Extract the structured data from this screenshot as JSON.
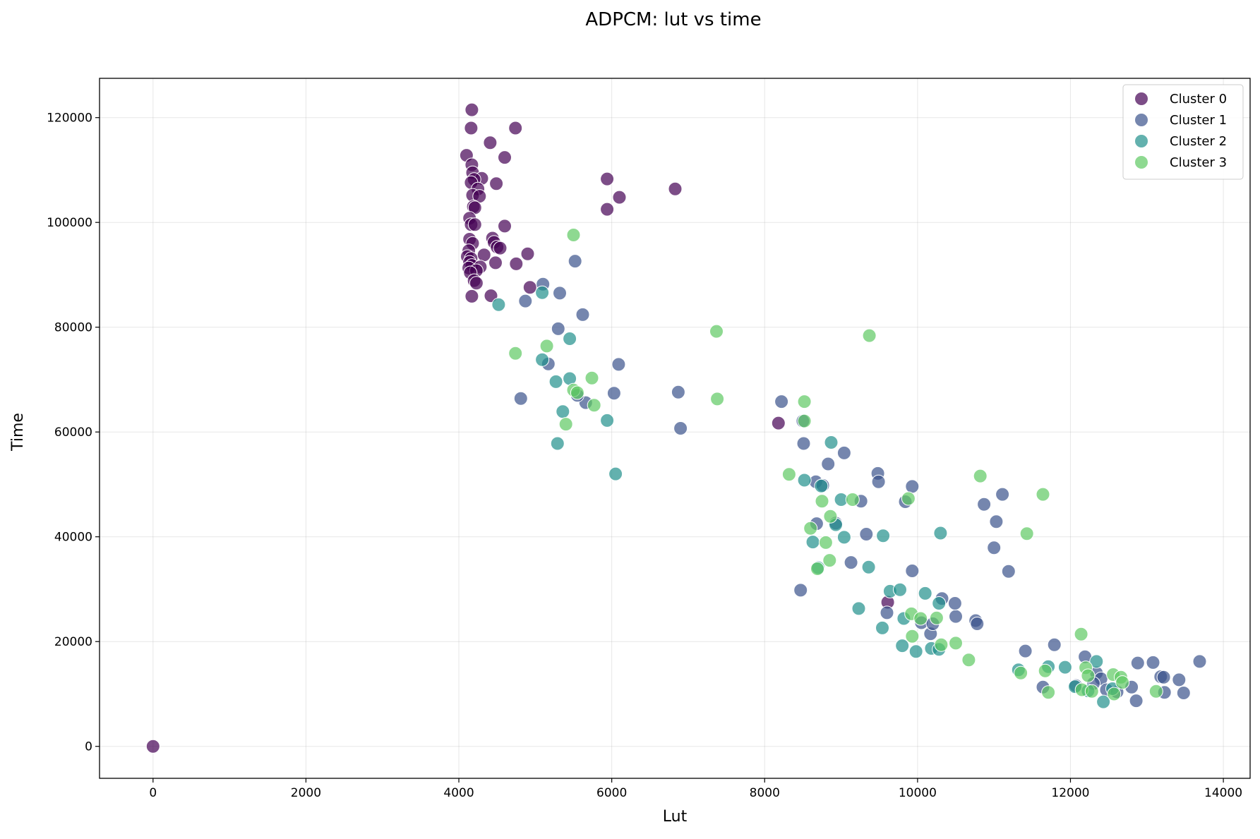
{
  "chart_data": {
    "type": "scatter",
    "title": "ADPCM: lut vs time",
    "xlabel": "Lut",
    "ylabel": "Time",
    "xlim": [
      -700,
      14350
    ],
    "ylim": [
      -6100,
      127500
    ],
    "xticks": [
      0,
      2000,
      4000,
      6000,
      8000,
      10000,
      12000,
      14000
    ],
    "xtick_labels": [
      "0",
      "2000",
      "4000",
      "6000",
      "8000",
      "10000",
      "12000",
      "14000"
    ],
    "yticks": [
      0,
      20000,
      40000,
      60000,
      80000,
      100000,
      120000
    ],
    "ytick_labels": [
      "0",
      "20000",
      "40000",
      "60000",
      "80000",
      "100000",
      "120000"
    ],
    "grid": true,
    "legend_position": "top-right",
    "series": [
      {
        "name": "Cluster 0",
        "color": "#440154",
        "points": [
          [
            0,
            0
          ],
          [
            4170,
            121500
          ],
          [
            4160,
            118000
          ],
          [
            4740,
            118000
          ],
          [
            4410,
            115200
          ],
          [
            4600,
            112400
          ],
          [
            4100,
            112800
          ],
          [
            4170,
            111000
          ],
          [
            4180,
            109500
          ],
          [
            4300,
            108400
          ],
          [
            4200,
            108200
          ],
          [
            4160,
            107600
          ],
          [
            4490,
            107400
          ],
          [
            4250,
            106400
          ],
          [
            4180,
            105200
          ],
          [
            4270,
            105000
          ],
          [
            4190,
            103000
          ],
          [
            4210,
            102800
          ],
          [
            4140,
            100800
          ],
          [
            4160,
            99600
          ],
          [
            4210,
            99600
          ],
          [
            4600,
            99300
          ],
          [
            4440,
            97000
          ],
          [
            4140,
            96800
          ],
          [
            4460,
            96200
          ],
          [
            4180,
            96000
          ],
          [
            4500,
            95300
          ],
          [
            4540,
            95100
          ],
          [
            4130,
            94600
          ],
          [
            4900,
            94000
          ],
          [
            4330,
            93800
          ],
          [
            4110,
            93500
          ],
          [
            4160,
            93100
          ],
          [
            4140,
            92400
          ],
          [
            4480,
            92300
          ],
          [
            4750,
            92100
          ],
          [
            4170,
            91800
          ],
          [
            4280,
            91500
          ],
          [
            4130,
            91300
          ],
          [
            4230,
            90800
          ],
          [
            4150,
            90400
          ],
          [
            4200,
            88900
          ],
          [
            4230,
            88400
          ],
          [
            4930,
            87600
          ],
          [
            4420,
            86000
          ],
          [
            4170,
            85900
          ],
          [
            5940,
            108300
          ],
          [
            6100,
            104800
          ],
          [
            5940,
            102500
          ],
          [
            6830,
            106400
          ],
          [
            8180,
            61700
          ],
          [
            9610,
            27500
          ]
        ]
      },
      {
        "name": "Cluster 1",
        "color": "#3b528b",
        "points": [
          [
            5100,
            88200
          ],
          [
            5320,
            86500
          ],
          [
            4870,
            85000
          ],
          [
            5520,
            92600
          ],
          [
            5620,
            82400
          ],
          [
            5300,
            79700
          ],
          [
            5170,
            73000
          ],
          [
            6090,
            72900
          ],
          [
            4810,
            66400
          ],
          [
            5660,
            65600
          ],
          [
            6030,
            67400
          ],
          [
            5550,
            67000
          ],
          [
            6870,
            67600
          ],
          [
            6900,
            60700
          ],
          [
            8220,
            65800
          ],
          [
            8500,
            62100
          ],
          [
            8510,
            57800
          ],
          [
            8830,
            53900
          ],
          [
            9040,
            56000
          ],
          [
            9480,
            52100
          ],
          [
            9490,
            50500
          ],
          [
            9930,
            49600
          ],
          [
            8670,
            50500
          ],
          [
            8760,
            49800
          ],
          [
            9840,
            46700
          ],
          [
            9260,
            46800
          ],
          [
            8680,
            42500
          ],
          [
            8930,
            42600
          ],
          [
            9330,
            40500
          ],
          [
            9130,
            35100
          ],
          [
            9930,
            33500
          ],
          [
            8470,
            29800
          ],
          [
            9600,
            25500
          ],
          [
            10320,
            28200
          ],
          [
            10050,
            23600
          ],
          [
            10170,
            21500
          ],
          [
            10500,
            24800
          ],
          [
            10200,
            23400
          ],
          [
            10490,
            27300
          ],
          [
            10760,
            24000
          ],
          [
            10780,
            23400
          ],
          [
            10870,
            46200
          ],
          [
            11030,
            42900
          ],
          [
            11000,
            37900
          ],
          [
            11110,
            48100
          ],
          [
            11190,
            33400
          ],
          [
            11410,
            18200
          ],
          [
            11790,
            19400
          ],
          [
            11640,
            11300
          ],
          [
            12070,
            11600
          ],
          [
            12190,
            17100
          ],
          [
            12340,
            14000
          ],
          [
            12400,
            12900
          ],
          [
            12470,
            10800
          ],
          [
            12800,
            11300
          ],
          [
            12860,
            8700
          ],
          [
            12880,
            15900
          ],
          [
            13080,
            16000
          ],
          [
            13180,
            13300
          ],
          [
            13220,
            13200
          ],
          [
            13230,
            10300
          ],
          [
            13420,
            12700
          ],
          [
            13480,
            10200
          ],
          [
            13690,
            16200
          ],
          [
            12610,
            10400
          ],
          [
            12300,
            12000
          ]
        ]
      },
      {
        "name": "Cluster 2",
        "color": "#21908c",
        "points": [
          [
            4520,
            84300
          ],
          [
            5090,
            86600
          ],
          [
            5450,
            77800
          ],
          [
            5090,
            73800
          ],
          [
            5450,
            70200
          ],
          [
            5270,
            69600
          ],
          [
            5360,
            63900
          ],
          [
            5940,
            62200
          ],
          [
            5290,
            57800
          ],
          [
            6050,
            52000
          ],
          [
            8870,
            58000
          ],
          [
            8740,
            49700
          ],
          [
            9000,
            47100
          ],
          [
            8520,
            50800
          ],
          [
            8930,
            42300
          ],
          [
            8630,
            39000
          ],
          [
            9040,
            39900
          ],
          [
            9550,
            40200
          ],
          [
            10300,
            40700
          ],
          [
            8700,
            34100
          ],
          [
            9360,
            34200
          ],
          [
            9640,
            29600
          ],
          [
            9770,
            29900
          ],
          [
            10100,
            29200
          ],
          [
            9230,
            26300
          ],
          [
            9820,
            24400
          ],
          [
            10280,
            27300
          ],
          [
            9540,
            22600
          ],
          [
            9800,
            19200
          ],
          [
            9980,
            18100
          ],
          [
            10180,
            18700
          ],
          [
            10280,
            18500
          ],
          [
            11320,
            14600
          ],
          [
            11710,
            15200
          ],
          [
            11930,
            15100
          ],
          [
            12340,
            16200
          ],
          [
            12060,
            11400
          ],
          [
            12230,
            10600
          ],
          [
            12430,
            8500
          ],
          [
            12550,
            11000
          ]
        ]
      },
      {
        "name": "Cluster 3",
        "color": "#5ec962",
        "points": [
          [
            5500,
            97600
          ],
          [
            7370,
            79200
          ],
          [
            9370,
            78400
          ],
          [
            4740,
            75000
          ],
          [
            5150,
            76400
          ],
          [
            5740,
            70300
          ],
          [
            5500,
            68000
          ],
          [
            5550,
            67500
          ],
          [
            5770,
            65100
          ],
          [
            5400,
            61500
          ],
          [
            7380,
            66300
          ],
          [
            8520,
            65800
          ],
          [
            8520,
            62100
          ],
          [
            8320,
            51900
          ],
          [
            8750,
            46800
          ],
          [
            9150,
            47100
          ],
          [
            9880,
            47300
          ],
          [
            10820,
            51600
          ],
          [
            11640,
            48100
          ],
          [
            11430,
            40600
          ],
          [
            8600,
            41600
          ],
          [
            8860,
            43900
          ],
          [
            8800,
            38900
          ],
          [
            8850,
            35500
          ],
          [
            8690,
            33900
          ],
          [
            9920,
            25300
          ],
          [
            10040,
            24400
          ],
          [
            10250,
            24500
          ],
          [
            9930,
            21000
          ],
          [
            10310,
            19400
          ],
          [
            10500,
            19700
          ],
          [
            10670,
            16500
          ],
          [
            11350,
            14000
          ],
          [
            11670,
            14400
          ],
          [
            11710,
            10300
          ],
          [
            12140,
            21400
          ],
          [
            12200,
            15000
          ],
          [
            12230,
            13500
          ],
          [
            12150,
            10800
          ],
          [
            12280,
            10500
          ],
          [
            12560,
            13700
          ],
          [
            12570,
            10000
          ],
          [
            12660,
            13200
          ],
          [
            12680,
            12200
          ],
          [
            13120,
            10500
          ]
        ]
      }
    ]
  }
}
